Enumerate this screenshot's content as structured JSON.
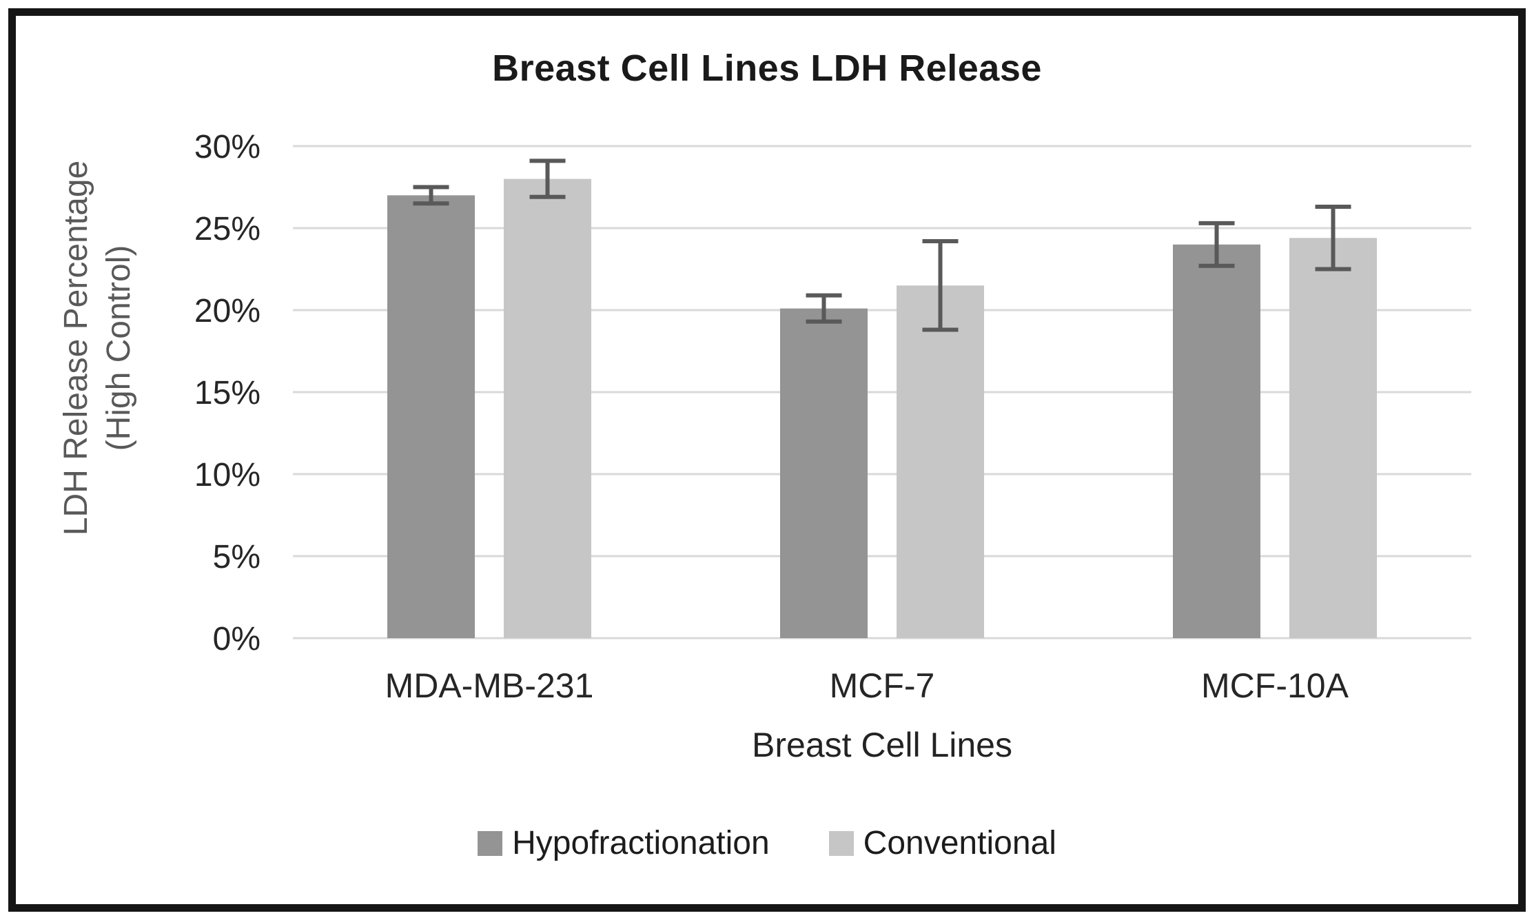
{
  "chart_data": {
    "type": "bar",
    "title": "Breast Cell Lines LDH Release",
    "xlabel": "Breast Cell Lines",
    "ylabel": "LDH Release Percentage (High Control)",
    "ylabel_lines": [
      "LDH Release Percentage",
      "(High Control)"
    ],
    "categories": [
      "MDA-MB-231",
      "MCF-7",
      "MCF-10A"
    ],
    "series": [
      {
        "name": "Hypofractionation",
        "color": "#949494",
        "values": [
          27.0,
          20.1,
          24.0
        ],
        "errors": [
          0.5,
          0.8,
          1.3
        ]
      },
      {
        "name": "Conventional",
        "color": "#c6c6c6",
        "values": [
          28.0,
          21.5,
          24.4
        ],
        "errors": [
          1.1,
          2.7,
          1.9
        ]
      }
    ],
    "y_ticks": [
      "0%",
      "5%",
      "10%",
      "15%",
      "20%",
      "25%",
      "30%"
    ],
    "ylim": [
      0,
      30
    ],
    "grid": true,
    "legend_position": "bottom",
    "gridline_color": "#d9d9d9",
    "error_bar_color": "#595959",
    "tick_label_color": "#262626",
    "frame_border_color": "#161616"
  }
}
